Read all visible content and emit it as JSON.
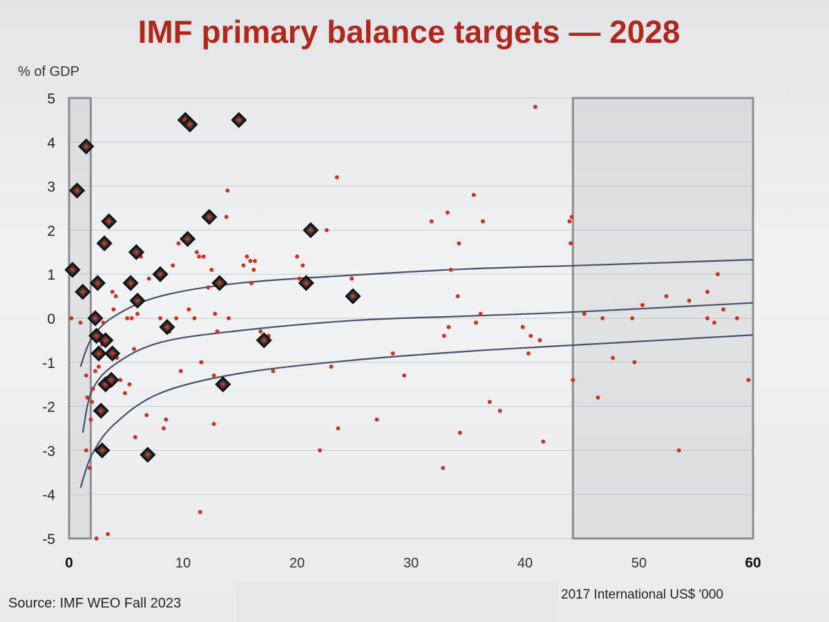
{
  "chart_data": {
    "type": "scatter",
    "title": "IMF primary balance targets — 2028",
    "ylabel": "% of GDP",
    "xlabel": "2017 International US$ '000",
    "source": "Source:  IMF WEO Fall 2023",
    "xlim": [
      0,
      60
    ],
    "ylim": [
      -5,
      5
    ],
    "x_ticks": [
      "0",
      "10",
      "20",
      "30",
      "40",
      "50",
      "60"
    ],
    "y_ticks": [
      "5",
      "4",
      "3",
      "2",
      "1",
      "0",
      "-1",
      "-2",
      "-3",
      "-4",
      "-5"
    ],
    "shaded_regions": [
      [
        0,
        1.9
      ],
      [
        44.2,
        60
      ]
    ],
    "series": [
      {
        "name": "countries",
        "color": "#cc3322",
        "points": [
          [
            0.2,
            0
          ],
          [
            1.0,
            -0.1
          ],
          [
            1.5,
            -1.3
          ],
          [
            1.6,
            -1.8
          ],
          [
            1.8,
            -3.4
          ],
          [
            1.5,
            -3.0
          ],
          [
            1.9,
            -2.3
          ],
          [
            2.0,
            -1.9
          ],
          [
            2.1,
            -1.6
          ],
          [
            2.3,
            -1.2
          ],
          [
            2.6,
            -1.1
          ],
          [
            2.8,
            -0.8
          ],
          [
            3.0,
            -0.1
          ],
          [
            2.4,
            -5.0
          ],
          [
            3.4,
            -4.9
          ],
          [
            2.9,
            -0.6
          ],
          [
            3.8,
            0.6
          ],
          [
            3.9,
            0.2
          ],
          [
            4.1,
            0.5
          ],
          [
            4.2,
            -0.9
          ],
          [
            4.5,
            -1.4
          ],
          [
            4.9,
            -1.7
          ],
          [
            5.1,
            0
          ],
          [
            5.3,
            -1.5
          ],
          [
            5.5,
            0
          ],
          [
            5.7,
            -0.7
          ],
          [
            5.8,
            -2.7
          ],
          [
            6.0,
            0.1
          ],
          [
            6.3,
            1.4
          ],
          [
            6.8,
            -2.2
          ],
          [
            7.0,
            0.9
          ],
          [
            8.0,
            0
          ],
          [
            8.3,
            -2.5
          ],
          [
            8.5,
            -2.3
          ],
          [
            8.8,
            -0.3
          ],
          [
            9.1,
            1.2
          ],
          [
            9.4,
            0
          ],
          [
            9.6,
            1.7
          ],
          [
            9.8,
            -1.2
          ],
          [
            10.3,
            4.4
          ],
          [
            10.5,
            0.2
          ],
          [
            11.0,
            0
          ],
          [
            11.2,
            1.5
          ],
          [
            11.4,
            1.4
          ],
          [
            11.6,
            -1.0
          ],
          [
            11.8,
            1.4
          ],
          [
            12.2,
            0.7
          ],
          [
            12.5,
            1.1
          ],
          [
            12.7,
            -1.3
          ],
          [
            12.8,
            0.1
          ],
          [
            13.0,
            -0.3
          ],
          [
            12.7,
            -2.4
          ],
          [
            11.5,
            -4.4
          ],
          [
            13.9,
            2.9
          ],
          [
            13.8,
            2.3
          ],
          [
            14.0,
            0
          ],
          [
            15.3,
            1.2
          ],
          [
            15.6,
            1.4
          ],
          [
            15.9,
            1.3
          ],
          [
            16.2,
            1.1
          ],
          [
            16.3,
            1.3
          ],
          [
            16.0,
            0.8
          ],
          [
            16.8,
            -0.3
          ],
          [
            17.5,
            -0.4
          ],
          [
            17.9,
            -1.2
          ],
          [
            20.0,
            1.4
          ],
          [
            20.2,
            0.9
          ],
          [
            20.5,
            1.2
          ],
          [
            22.0,
            -3.0
          ],
          [
            22.6,
            2.0
          ],
          [
            23.0,
            -1.1
          ],
          [
            23.5,
            3.2
          ],
          [
            23.6,
            -2.5
          ],
          [
            24.8,
            0.9
          ],
          [
            27.0,
            -2.3
          ],
          [
            28.4,
            -0.8
          ],
          [
            29.4,
            -1.3
          ],
          [
            31.8,
            2.2
          ],
          [
            32.8,
            -3.4
          ],
          [
            32.9,
            -0.4
          ],
          [
            33.2,
            2.4
          ],
          [
            33.3,
            -0.2
          ],
          [
            33.5,
            1.1
          ],
          [
            34.1,
            0.5
          ],
          [
            34.2,
            1.7
          ],
          [
            34.3,
            -2.6
          ],
          [
            35.5,
            2.8
          ],
          [
            35.7,
            -0.1
          ],
          [
            36.1,
            0.1
          ],
          [
            36.3,
            2.2
          ],
          [
            36.9,
            -1.9
          ],
          [
            37.8,
            -2.1
          ],
          [
            39.8,
            -0.2
          ],
          [
            40.3,
            -0.8
          ],
          [
            40.5,
            -0.4
          ],
          [
            40.9,
            4.8
          ],
          [
            41.3,
            -0.5
          ],
          [
            41.6,
            -2.8
          ],
          [
            43.9,
            2.2
          ],
          [
            44.0,
            1.7
          ],
          [
            44.1,
            2.3
          ],
          [
            44.2,
            -1.4
          ],
          [
            45.2,
            0.1
          ],
          [
            46.4,
            -1.8
          ],
          [
            46.8,
            0
          ],
          [
            47.7,
            -0.9
          ],
          [
            49.4,
            0
          ],
          [
            49.6,
            -1.0
          ],
          [
            50.3,
            0.3
          ],
          [
            52.4,
            0.5
          ],
          [
            53.5,
            -3.0
          ],
          [
            54.4,
            0.4
          ],
          [
            56.0,
            0.6
          ],
          [
            56.0,
            0
          ],
          [
            56.6,
            -0.1
          ],
          [
            56.9,
            1.0
          ],
          [
            57.4,
            0.2
          ],
          [
            58.6,
            0
          ],
          [
            59.6,
            -1.4
          ]
        ]
      },
      {
        "name": "highlighted",
        "color": "#111111",
        "points": [
          [
            0.3,
            1.1
          ],
          [
            0.7,
            2.9
          ],
          [
            1.2,
            0.6
          ],
          [
            1.5,
            3.9
          ],
          [
            2.3,
            0
          ],
          [
            2.4,
            -0.4
          ],
          [
            2.5,
            0.8
          ],
          [
            2.6,
            -0.8
          ],
          [
            2.8,
            -2.1
          ],
          [
            2.9,
            -3.0
          ],
          [
            3.1,
            1.7
          ],
          [
            3.2,
            -0.5
          ],
          [
            3.2,
            -1.5
          ],
          [
            3.5,
            2.2
          ],
          [
            3.7,
            -1.4
          ],
          [
            3.8,
            -0.8
          ],
          [
            5.4,
            0.8
          ],
          [
            5.9,
            1.5
          ],
          [
            6.0,
            0.4
          ],
          [
            6.9,
            -3.1
          ],
          [
            8.0,
            1.0
          ],
          [
            8.6,
            -0.2
          ],
          [
            10.2,
            4.5
          ],
          [
            10.6,
            4.4
          ],
          [
            10.4,
            1.8
          ],
          [
            12.3,
            2.3
          ],
          [
            13.2,
            0.8
          ],
          [
            13.5,
            -1.5
          ],
          [
            14.9,
            4.5
          ],
          [
            17.1,
            -0.5
          ],
          [
            21.2,
            2.0
          ],
          [
            20.8,
            0.8
          ],
          [
            24.9,
            0.5
          ]
        ]
      }
    ],
    "curves": [
      {
        "name": "upper",
        "color": "#445066",
        "points": [
          [
            1.0,
            -1.1
          ],
          [
            2,
            -0.45
          ],
          [
            4,
            0.05
          ],
          [
            8,
            0.5
          ],
          [
            15,
            0.8
          ],
          [
            25,
            0.98
          ],
          [
            35,
            1.12
          ],
          [
            45,
            1.2
          ],
          [
            60,
            1.33
          ]
        ]
      },
      {
        "name": "middle",
        "color": "#445066",
        "points": [
          [
            1.2,
            -2.6
          ],
          [
            2,
            -1.65
          ],
          [
            4,
            -1.05
          ],
          [
            8,
            -0.55
          ],
          [
            15,
            -0.28
          ],
          [
            25,
            -0.05
          ],
          [
            35,
            0.05
          ],
          [
            45,
            0.15
          ],
          [
            60,
            0.35
          ]
        ]
      },
      {
        "name": "lower",
        "color": "#445066",
        "points": [
          [
            1.0,
            -3.85
          ],
          [
            2,
            -3.1
          ],
          [
            4,
            -2.4
          ],
          [
            8,
            -1.7
          ],
          [
            15,
            -1.25
          ],
          [
            25,
            -0.95
          ],
          [
            35,
            -0.75
          ],
          [
            45,
            -0.6
          ],
          [
            60,
            -0.38
          ]
        ]
      }
    ]
  }
}
